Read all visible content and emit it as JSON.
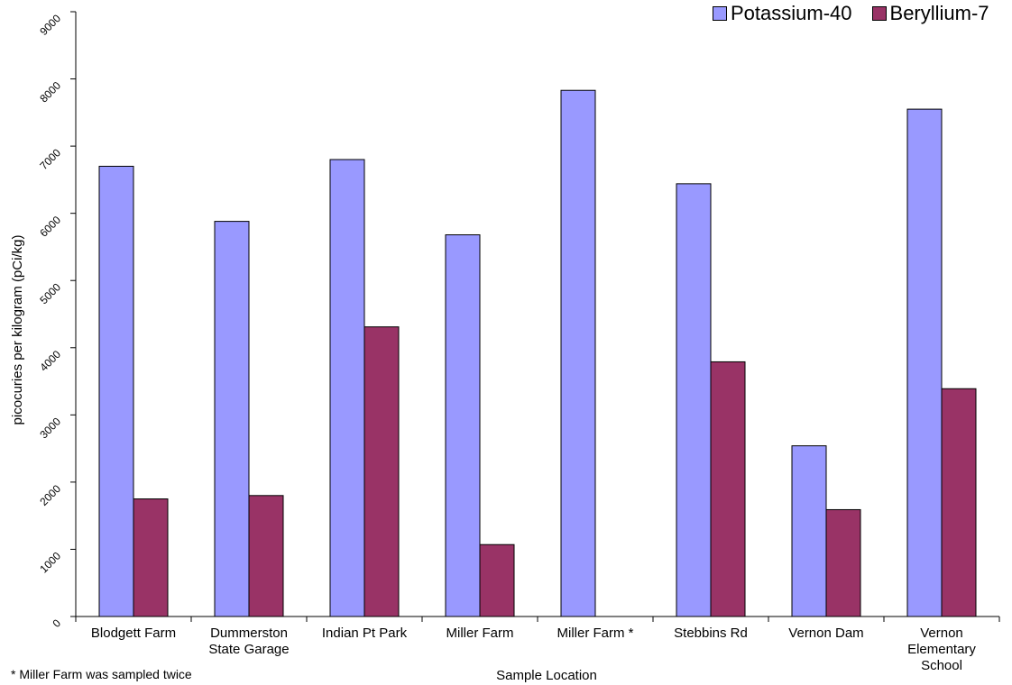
{
  "chart_data": {
    "type": "bar",
    "title": "",
    "xlabel": "Sample Location",
    "ylabel": "picocuries per kilogram (pCi/kg)",
    "ylim": [
      0,
      9000
    ],
    "yticks": [
      "0",
      "1000",
      "2000",
      "3000",
      "4000",
      "5000",
      "6000",
      "7000",
      "8000",
      "9000"
    ],
    "categories": [
      [
        "Blodgett Farm"
      ],
      [
        "Dummerston",
        "State Garage"
      ],
      [
        "Indian Pt Park"
      ],
      [
        "Miller Farm"
      ],
      [
        "Miller Farm *"
      ],
      [
        "Stebbins Rd"
      ],
      [
        "Vernon Dam"
      ],
      [
        "Vernon",
        "Elementary",
        "School"
      ]
    ],
    "series": [
      {
        "name": "Potassium-40",
        "color": "#9999ff",
        "values": [
          6700,
          5880,
          6800,
          5680,
          7830,
          6440,
          2540,
          7550
        ]
      },
      {
        "name": "Beryllium-7",
        "color": "#993366",
        "values": [
          1750,
          1800,
          4310,
          1070,
          null,
          3790,
          1590,
          3390
        ]
      }
    ],
    "legend_position": "top-right",
    "grid": false
  },
  "footnote": "* Miller Farm was sampled twice"
}
